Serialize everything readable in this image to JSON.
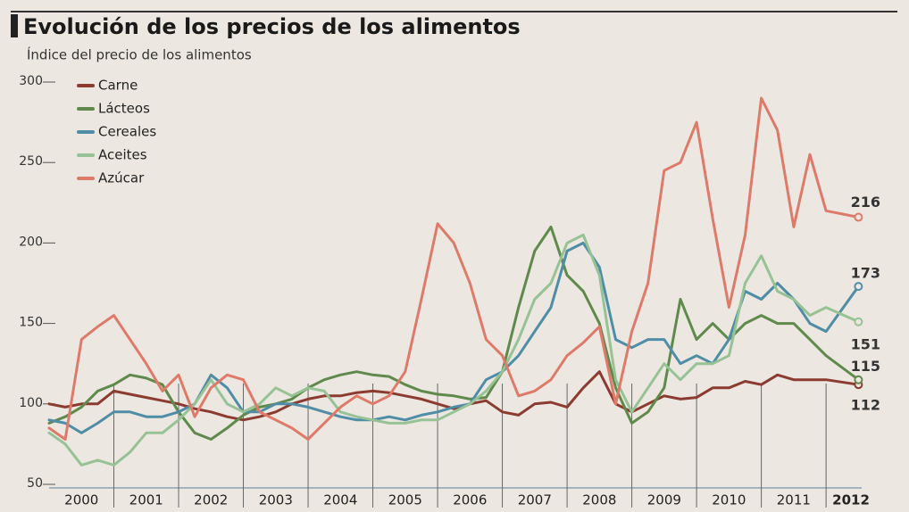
{
  "chart_data": {
    "type": "line",
    "title": "Evolución de los precios de los alimentos",
    "subtitle": "Índice del precio de los alimentos",
    "x": [
      2000,
      2000.25,
      2000.5,
      2000.75,
      2001,
      2001.25,
      2001.5,
      2001.75,
      2002,
      2002.25,
      2002.5,
      2002.75,
      2003,
      2003.25,
      2003.5,
      2003.75,
      2004,
      2004.25,
      2004.5,
      2004.75,
      2005,
      2005.25,
      2005.5,
      2005.75,
      2006,
      2006.25,
      2006.5,
      2006.75,
      2007,
      2007.25,
      2007.5,
      2007.75,
      2008,
      2008.25,
      2008.5,
      2008.75,
      2009,
      2009.25,
      2009.5,
      2009.75,
      2010,
      2010.25,
      2010.5,
      2010.75,
      2011,
      2011.25,
      2011.5,
      2011.75,
      2012,
      2012.5
    ],
    "xlim": [
      2000,
      2012.55
    ],
    "xticks": [
      2000,
      2001,
      2002,
      2003,
      2004,
      2005,
      2006,
      2007,
      2008,
      2009,
      2010,
      2011,
      2012
    ],
    "ylim": [
      50,
      300
    ],
    "yticks": [
      50,
      100,
      150,
      200,
      250,
      300
    ],
    "series": [
      {
        "name": "Carne",
        "color": "#8b3b30",
        "values": [
          100,
          98,
          100,
          100,
          108,
          106,
          104,
          102,
          100,
          97,
          95,
          92,
          90,
          92,
          95,
          100,
          103,
          105,
          105,
          107,
          108,
          107,
          105,
          103,
          100,
          97,
          100,
          102,
          95,
          93,
          100,
          101,
          98,
          110,
          120,
          100,
          95,
          100,
          105,
          103,
          104,
          110,
          110,
          114,
          112,
          118,
          115,
          115,
          115,
          112
        ]
      },
      {
        "name": "Lácteos",
        "color": "#5f8a4c",
        "values": [
          88,
          92,
          98,
          108,
          112,
          118,
          116,
          112,
          95,
          82,
          78,
          85,
          93,
          98,
          100,
          103,
          110,
          115,
          118,
          120,
          118,
          117,
          112,
          108,
          106,
          105,
          103,
          104,
          120,
          160,
          195,
          210,
          180,
          170,
          150,
          110,
          88,
          95,
          110,
          165,
          140,
          150,
          140,
          150,
          155,
          150,
          150,
          140,
          130,
          115
        ]
      },
      {
        "name": "Cereales",
        "color": "#4f8da6",
        "values": [
          90,
          88,
          82,
          88,
          95,
          95,
          92,
          92,
          95,
          100,
          118,
          110,
          95,
          95,
          100,
          100,
          98,
          95,
          92,
          90,
          90,
          92,
          90,
          93,
          95,
          98,
          100,
          115,
          120,
          130,
          145,
          160,
          195,
          200,
          185,
          140,
          135,
          140,
          140,
          125,
          130,
          125,
          140,
          170,
          165,
          175,
          165,
          150,
          145,
          173
        ]
      },
      {
        "name": "Aceites",
        "color": "#97c295",
        "values": [
          82,
          75,
          62,
          65,
          62,
          70,
          82,
          82,
          90,
          100,
          115,
          100,
          95,
          100,
          110,
          105,
          110,
          108,
          95,
          92,
          90,
          88,
          88,
          90,
          90,
          95,
          100,
          108,
          120,
          140,
          165,
          175,
          200,
          205,
          180,
          115,
          95,
          110,
          125,
          115,
          125,
          125,
          130,
          175,
          192,
          170,
          165,
          155,
          160,
          151
        ]
      },
      {
        "name": "Azúcar",
        "color": "#de7a6a",
        "values": [
          85,
          78,
          140,
          148,
          155,
          140,
          125,
          108,
          118,
          92,
          110,
          118,
          115,
          95,
          90,
          85,
          78,
          88,
          98,
          105,
          100,
          105,
          120,
          165,
          212,
          200,
          175,
          140,
          130,
          105,
          108,
          115,
          130,
          138,
          148,
          100,
          145,
          175,
          245,
          250,
          275,
          215,
          160,
          205,
          290,
          270,
          210,
          255,
          220,
          216
        ]
      }
    ]
  }
}
